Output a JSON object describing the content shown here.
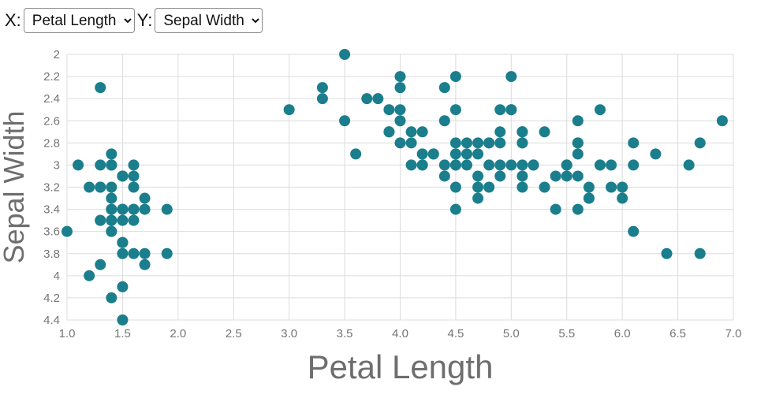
{
  "controls": {
    "x_label": "X:",
    "x_selected": "Petal Length",
    "y_label": "Y:",
    "y_selected": "Sepal Width"
  },
  "chart_data": {
    "type": "scatter",
    "xlabel": "Petal Length",
    "ylabel": "Sepal Width",
    "xlim": [
      1.0,
      7.0
    ],
    "ylim": [
      2.0,
      4.4
    ],
    "y_axis_inverted": true,
    "grid": true,
    "marker_color": "#1b7e8c",
    "x_ticks": [
      "1.0",
      "1.5",
      "2.0",
      "2.5",
      "3.0",
      "3.5",
      "4.0",
      "4.5",
      "5.0",
      "5.5",
      "6.0",
      "6.5",
      "7.0"
    ],
    "y_ticks": [
      "2",
      "2.2",
      "2.4",
      "2.6",
      "2.8",
      "3",
      "3.2",
      "3.4",
      "3.6",
      "3.8",
      "4",
      "4.2",
      "4.4"
    ],
    "points": [
      [
        1.4,
        3.5
      ],
      [
        1.4,
        3.0
      ],
      [
        1.3,
        3.2
      ],
      [
        1.5,
        3.1
      ],
      [
        1.4,
        3.6
      ],
      [
        1.7,
        3.9
      ],
      [
        1.4,
        3.4
      ],
      [
        1.5,
        3.4
      ],
      [
        1.4,
        2.9
      ],
      [
        1.5,
        3.1
      ],
      [
        1.5,
        3.7
      ],
      [
        1.6,
        3.4
      ],
      [
        1.4,
        3.0
      ],
      [
        1.1,
        3.0
      ],
      [
        1.2,
        4.0
      ],
      [
        1.5,
        4.4
      ],
      [
        1.3,
        3.9
      ],
      [
        1.4,
        3.5
      ],
      [
        1.7,
        3.8
      ],
      [
        1.5,
        3.8
      ],
      [
        1.7,
        3.4
      ],
      [
        1.5,
        3.7
      ],
      [
        1.0,
        3.6
      ],
      [
        1.7,
        3.3
      ],
      [
        1.9,
        3.4
      ],
      [
        1.6,
        3.0
      ],
      [
        1.6,
        3.4
      ],
      [
        1.5,
        3.5
      ],
      [
        1.4,
        3.4
      ],
      [
        1.6,
        3.2
      ],
      [
        1.6,
        3.1
      ],
      [
        1.5,
        3.4
      ],
      [
        1.5,
        4.1
      ],
      [
        1.4,
        4.2
      ],
      [
        1.5,
        3.1
      ],
      [
        1.2,
        3.2
      ],
      [
        1.3,
        3.5
      ],
      [
        1.4,
        3.6
      ],
      [
        1.3,
        3.0
      ],
      [
        1.5,
        3.4
      ],
      [
        1.3,
        3.5
      ],
      [
        1.3,
        2.3
      ],
      [
        1.3,
        3.2
      ],
      [
        1.6,
        3.5
      ],
      [
        1.9,
        3.8
      ],
      [
        1.4,
        3.0
      ],
      [
        1.6,
        3.8
      ],
      [
        1.4,
        3.2
      ],
      [
        1.5,
        3.7
      ],
      [
        1.4,
        3.3
      ],
      [
        4.7,
        3.2
      ],
      [
        4.5,
        3.2
      ],
      [
        4.9,
        3.1
      ],
      [
        4.0,
        2.3
      ],
      [
        4.6,
        2.8
      ],
      [
        4.5,
        2.8
      ],
      [
        4.7,
        3.3
      ],
      [
        3.3,
        2.4
      ],
      [
        4.6,
        2.9
      ],
      [
        3.9,
        2.7
      ],
      [
        3.5,
        2.0
      ],
      [
        4.2,
        3.0
      ],
      [
        4.0,
        2.2
      ],
      [
        4.7,
        2.9
      ],
      [
        3.6,
        2.9
      ],
      [
        4.4,
        3.1
      ],
      [
        4.5,
        3.0
      ],
      [
        4.1,
        2.7
      ],
      [
        4.5,
        2.2
      ],
      [
        3.9,
        2.5
      ],
      [
        4.8,
        3.2
      ],
      [
        4.0,
        2.8
      ],
      [
        4.9,
        2.5
      ],
      [
        4.7,
        2.8
      ],
      [
        4.3,
        2.9
      ],
      [
        4.4,
        3.0
      ],
      [
        4.8,
        2.8
      ],
      [
        5.0,
        3.0
      ],
      [
        4.5,
        2.9
      ],
      [
        3.5,
        2.6
      ],
      [
        3.8,
        2.4
      ],
      [
        3.7,
        2.4
      ],
      [
        3.9,
        2.7
      ],
      [
        5.1,
        2.7
      ],
      [
        4.5,
        3.0
      ],
      [
        4.5,
        3.4
      ],
      [
        4.7,
        3.1
      ],
      [
        4.4,
        2.3
      ],
      [
        4.1,
        3.0
      ],
      [
        4.0,
        2.5
      ],
      [
        4.4,
        2.6
      ],
      [
        4.6,
        3.0
      ],
      [
        4.0,
        2.6
      ],
      [
        3.3,
        2.3
      ],
      [
        4.2,
        2.7
      ],
      [
        4.2,
        3.0
      ],
      [
        4.2,
        2.9
      ],
      [
        4.3,
        2.9
      ],
      [
        3.0,
        2.5
      ],
      [
        4.1,
        2.8
      ],
      [
        6.0,
        3.3
      ],
      [
        5.1,
        2.7
      ],
      [
        5.9,
        3.0
      ],
      [
        5.6,
        2.9
      ],
      [
        5.8,
        3.0
      ],
      [
        6.6,
        3.0
      ],
      [
        4.5,
        2.5
      ],
      [
        6.3,
        2.9
      ],
      [
        5.8,
        2.5
      ],
      [
        6.1,
        3.6
      ],
      [
        5.1,
        3.2
      ],
      [
        5.3,
        2.7
      ],
      [
        5.5,
        3.0
      ],
      [
        5.0,
        2.5
      ],
      [
        5.1,
        2.8
      ],
      [
        5.3,
        3.2
      ],
      [
        5.5,
        3.0
      ],
      [
        6.7,
        3.8
      ],
      [
        6.9,
        2.6
      ],
      [
        5.0,
        2.2
      ],
      [
        5.7,
        3.2
      ],
      [
        4.9,
        2.8
      ],
      [
        6.7,
        2.8
      ],
      [
        4.9,
        2.7
      ],
      [
        5.7,
        3.3
      ],
      [
        6.0,
        3.2
      ],
      [
        4.8,
        2.8
      ],
      [
        4.9,
        3.0
      ],
      [
        5.6,
        2.8
      ],
      [
        5.8,
        3.0
      ],
      [
        6.1,
        2.8
      ],
      [
        6.4,
        3.8
      ],
      [
        5.6,
        2.8
      ],
      [
        5.1,
        2.8
      ],
      [
        5.6,
        2.6
      ],
      [
        6.1,
        3.0
      ],
      [
        5.6,
        3.4
      ],
      [
        5.5,
        3.1
      ],
      [
        4.8,
        3.0
      ],
      [
        5.4,
        3.1
      ],
      [
        5.6,
        3.1
      ],
      [
        5.1,
        3.1
      ],
      [
        5.1,
        2.7
      ],
      [
        5.9,
        3.2
      ],
      [
        5.7,
        3.3
      ],
      [
        5.2,
        3.0
      ],
      [
        5.0,
        2.5
      ],
      [
        5.2,
        3.0
      ],
      [
        5.4,
        3.4
      ],
      [
        5.1,
        3.0
      ]
    ]
  }
}
